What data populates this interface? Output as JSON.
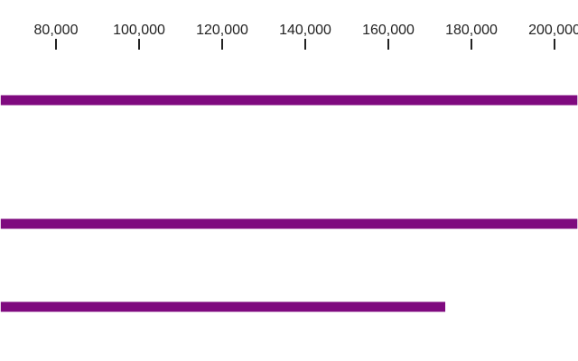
{
  "chart_data": {
    "type": "bar",
    "orientation": "horizontal",
    "axis": {
      "position": "top",
      "ticks": [
        80000,
        100000,
        120000,
        140000,
        160000,
        180000,
        200000
      ],
      "tick_labels": [
        "80,000",
        "100,000",
        "120,000",
        "140,000",
        "160,000",
        "180,000",
        "200,000"
      ],
      "visible_range": [
        66700,
        205500
      ]
    },
    "bars": [
      {
        "value": 205500,
        "clipped": true
      },
      {
        "value": 205500,
        "clipped": true
      },
      {
        "value": 173700
      }
    ],
    "grid": false,
    "colors": {
      "bar": "#7f0a7f",
      "tick": "#222222"
    }
  }
}
